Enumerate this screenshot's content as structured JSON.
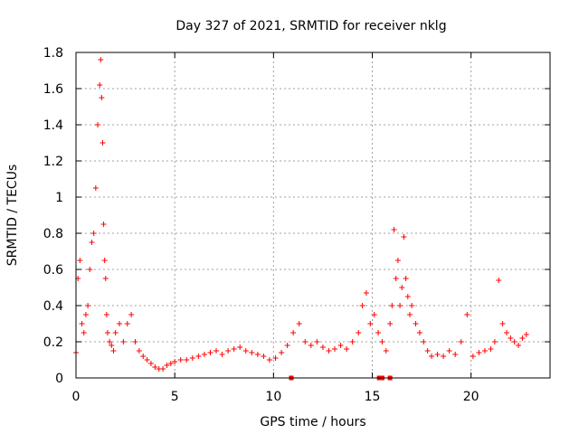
{
  "chart_data": {
    "type": "scatter",
    "title": "Day 327 of 2021, SRMTID for receiver nklg",
    "xlabel": "GPS time / hours",
    "ylabel": "SRMTID / TECUs",
    "xlim": [
      0,
      24
    ],
    "ylim": [
      0,
      1.8
    ],
    "xticks": [
      0,
      5,
      10,
      15,
      20
    ],
    "xtick_labels": [
      "0",
      "5",
      "10",
      "15",
      "20"
    ],
    "yticks": [
      0,
      0.2,
      0.4,
      0.6,
      0.8,
      1,
      1.2,
      1.4,
      1.6,
      1.8
    ],
    "ytick_labels": [
      "0",
      "0.2",
      "0.4",
      "0.6",
      "0.8",
      "1",
      "1.2",
      "1.4",
      "1.6",
      "1.8"
    ],
    "grid": true,
    "marker": "+",
    "color": "#ff0000",
    "series": [
      {
        "name": "SRMTID",
        "x": [
          0.0,
          0.1,
          0.2,
          0.3,
          0.4,
          0.5,
          0.6,
          0.7,
          0.8,
          0.9,
          1.0,
          1.1,
          1.2,
          1.25,
          1.3,
          1.35,
          1.4,
          1.45,
          1.5,
          1.55,
          1.6,
          1.7,
          1.8,
          1.9,
          2.0,
          2.2,
          2.4,
          2.6,
          2.8,
          3.0,
          3.2,
          3.4,
          3.6,
          3.8,
          4.0,
          4.2,
          4.4,
          4.6,
          4.8,
          5.0,
          5.3,
          5.6,
          5.9,
          6.2,
          6.5,
          6.8,
          7.1,
          7.4,
          7.7,
          8.0,
          8.3,
          8.6,
          8.9,
          9.2,
          9.5,
          9.8,
          10.1,
          10.4,
          10.7,
          11.0,
          11.3,
          11.6,
          11.9,
          12.2,
          12.5,
          12.8,
          13.1,
          13.4,
          13.7,
          14.0,
          14.3,
          14.5,
          14.7,
          14.9,
          15.1,
          15.3,
          15.5,
          15.7,
          15.9,
          16.0,
          16.1,
          16.2,
          16.3,
          16.4,
          16.5,
          16.6,
          16.7,
          16.8,
          16.9,
          17.0,
          17.2,
          17.4,
          17.6,
          17.8,
          18.0,
          18.3,
          18.6,
          18.9,
          19.2,
          19.5,
          19.8,
          20.1,
          20.4,
          20.7,
          21.0,
          21.2,
          21.4,
          21.6,
          21.8,
          22.0,
          22.2,
          22.4,
          22.6,
          22.8
        ],
        "y": [
          0.14,
          0.55,
          0.65,
          0.3,
          0.25,
          0.35,
          0.4,
          0.6,
          0.75,
          0.8,
          1.05,
          1.4,
          1.62,
          1.76,
          1.55,
          1.3,
          0.85,
          0.65,
          0.55,
          0.35,
          0.25,
          0.2,
          0.18,
          0.15,
          0.25,
          0.3,
          0.2,
          0.3,
          0.35,
          0.2,
          0.15,
          0.12,
          0.1,
          0.08,
          0.06,
          0.05,
          0.05,
          0.07,
          0.08,
          0.09,
          0.1,
          0.1,
          0.11,
          0.12,
          0.13,
          0.14,
          0.15,
          0.13,
          0.15,
          0.16,
          0.17,
          0.15,
          0.14,
          0.13,
          0.12,
          0.1,
          0.11,
          0.14,
          0.18,
          0.25,
          0.3,
          0.2,
          0.18,
          0.2,
          0.17,
          0.15,
          0.16,
          0.18,
          0.16,
          0.2,
          0.25,
          0.4,
          0.47,
          0.3,
          0.35,
          0.25,
          0.2,
          0.15,
          0.3,
          0.4,
          0.82,
          0.55,
          0.65,
          0.4,
          0.5,
          0.78,
          0.55,
          0.45,
          0.35,
          0.4,
          0.3,
          0.25,
          0.2,
          0.15,
          0.12,
          0.13,
          0.12,
          0.15,
          0.13,
          0.2,
          0.35,
          0.12,
          0.14,
          0.15,
          0.16,
          0.2,
          0.54,
          0.3,
          0.25,
          0.22,
          0.2,
          0.18,
          0.22,
          0.24
        ],
        "gap_markers_x": [
          10.9,
          15.35,
          15.5,
          15.9
        ]
      }
    ]
  }
}
